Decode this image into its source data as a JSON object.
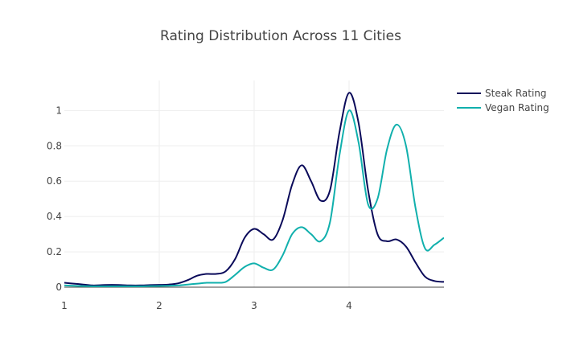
{
  "chart_data": {
    "type": "line",
    "title": "Rating Distribution Across 11 Cities",
    "xlabel": "",
    "ylabel": "",
    "xlim": [
      1,
      5
    ],
    "ylim": [
      0,
      1.17
    ],
    "xticks": [
      1,
      2,
      3,
      4
    ],
    "yticks": [
      0,
      0.2,
      0.4,
      0.6,
      0.8,
      1
    ],
    "ytick_labels": [
      "0",
      "0.2",
      "0.4",
      "0.6",
      "0.8",
      "1"
    ],
    "grid": true,
    "legend_position": "top-right",
    "series": [
      {
        "name": "Steak Rating",
        "color": "#0a0a5a",
        "x": [
          1.0,
          1.1,
          1.2,
          1.3,
          1.4,
          1.5,
          1.6,
          1.7,
          1.8,
          1.9,
          2.0,
          2.1,
          2.2,
          2.3,
          2.4,
          2.5,
          2.6,
          2.7,
          2.8,
          2.9,
          3.0,
          3.1,
          3.2,
          3.3,
          3.4,
          3.5,
          3.6,
          3.7,
          3.8,
          3.9,
          4.0,
          4.1,
          4.2,
          4.3,
          4.4,
          4.5,
          4.6,
          4.7,
          4.8,
          4.9,
          5.0
        ],
        "y": [
          0.025,
          0.02,
          0.015,
          0.01,
          0.012,
          0.013,
          0.012,
          0.01,
          0.01,
          0.012,
          0.013,
          0.015,
          0.022,
          0.04,
          0.065,
          0.075,
          0.075,
          0.09,
          0.16,
          0.28,
          0.33,
          0.3,
          0.27,
          0.38,
          0.58,
          0.69,
          0.6,
          0.49,
          0.55,
          0.88,
          1.1,
          0.93,
          0.55,
          0.3,
          0.26,
          0.27,
          0.23,
          0.14,
          0.06,
          0.035,
          0.03
        ]
      },
      {
        "name": "Vegan Rating",
        "color": "#11b0ad",
        "x": [
          1.0,
          1.1,
          1.2,
          1.3,
          1.4,
          1.5,
          1.6,
          1.7,
          1.8,
          1.9,
          2.0,
          2.1,
          2.2,
          2.3,
          2.4,
          2.5,
          2.6,
          2.7,
          2.8,
          2.9,
          3.0,
          3.1,
          3.2,
          3.3,
          3.4,
          3.5,
          3.6,
          3.7,
          3.8,
          3.9,
          4.0,
          4.1,
          4.2,
          4.3,
          4.4,
          4.5,
          4.6,
          4.7,
          4.8,
          4.9,
          5.0
        ],
        "y": [
          0.01,
          0.008,
          0.006,
          0.005,
          0.005,
          0.005,
          0.005,
          0.005,
          0.005,
          0.006,
          0.007,
          0.008,
          0.01,
          0.015,
          0.02,
          0.025,
          0.025,
          0.03,
          0.07,
          0.115,
          0.135,
          0.11,
          0.1,
          0.18,
          0.3,
          0.34,
          0.3,
          0.26,
          0.37,
          0.75,
          1.0,
          0.82,
          0.47,
          0.5,
          0.78,
          0.92,
          0.8,
          0.45,
          0.22,
          0.24,
          0.28
        ]
      }
    ]
  }
}
